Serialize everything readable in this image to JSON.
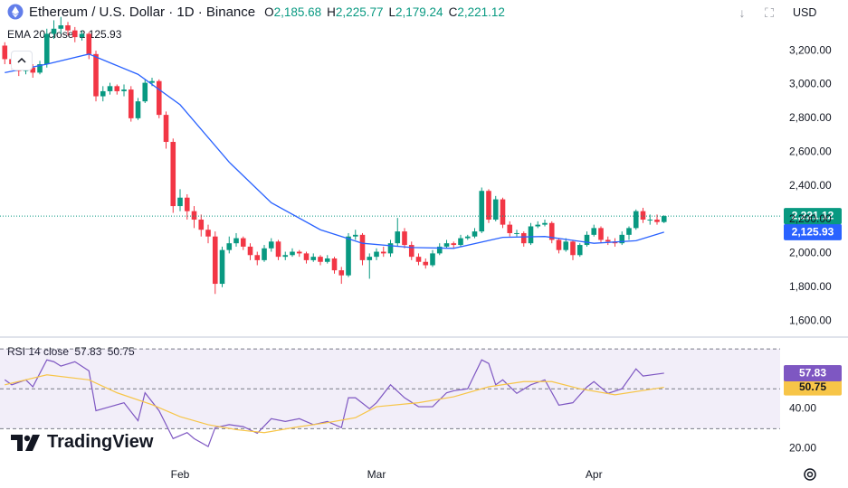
{
  "header": {
    "title": "Ethereum / U.S. Dollar · 1D · Binance",
    "ohlc": [
      {
        "key": "O",
        "value": "2,185.68"
      },
      {
        "key": "H",
        "value": "2,225.77"
      },
      {
        "key": "L",
        "value": "2,179.24"
      },
      {
        "key": "C",
        "value": "2,221.12"
      }
    ],
    "currency": "USD"
  },
  "logo": "TradingView",
  "chart_data": [
    {
      "type": "candlestick",
      "xlim": [
        -0.68,
        110.55
      ],
      "ylim": [
        1510,
        3500
      ],
      "yticks": [
        {
          "value": 1600,
          "label": "1,600.00"
        },
        {
          "value": 1800,
          "label": "1,800.00"
        },
        {
          "value": 2000,
          "label": "2,000.00"
        },
        {
          "value": 2200,
          "label": "2,200.00"
        },
        {
          "value": 2400,
          "label": "2,400.00"
        },
        {
          "value": 2600,
          "label": "2,600.00"
        },
        {
          "value": 2800,
          "label": "2,800.00"
        },
        {
          "value": 3000,
          "label": "3,000.00"
        },
        {
          "value": 3200,
          "label": "3,200.00"
        }
      ],
      "up_color": "#089981",
      "down_color": "#f23645",
      "candles": [
        [
          3230,
          3250,
          3120,
          3150
        ],
        [
          3150,
          3190,
          3090,
          3120
        ],
        [
          3120,
          3140,
          3050,
          3080
        ],
        [
          3080,
          3130,
          3060,
          3100
        ],
        [
          3100,
          3120,
          3040,
          3070
        ],
        [
          3070,
          3140,
          3060,
          3120
        ],
        [
          3120,
          3330,
          3100,
          3300
        ],
        [
          3300,
          3380,
          3270,
          3330
        ],
        [
          3330,
          3400,
          3300,
          3350
        ],
        [
          3350,
          3370,
          3290,
          3320
        ],
        [
          3320,
          3340,
          3250,
          3280
        ],
        [
          3280,
          3320,
          3260,
          3300
        ],
        [
          3300,
          3310,
          3150,
          3180
        ],
        [
          3180,
          3200,
          2900,
          2930
        ],
        [
          2930,
          2990,
          2900,
          2960
        ],
        [
          2960,
          3010,
          2940,
          2990
        ],
        [
          2990,
          3000,
          2940,
          2960
        ],
        [
          2960,
          3000,
          2930,
          2970
        ],
        [
          2970,
          2990,
          2780,
          2800
        ],
        [
          2800,
          2920,
          2790,
          2900
        ],
        [
          2900,
          3030,
          2890,
          3010
        ],
        [
          3010,
          3040,
          2990,
          3020
        ],
        [
          3020,
          3030,
          2800,
          2820
        ],
        [
          2820,
          2840,
          2620,
          2660
        ],
        [
          2660,
          2680,
          2240,
          2280
        ],
        [
          2280,
          2380,
          2250,
          2330
        ],
        [
          2330,
          2350,
          2200,
          2250
        ],
        [
          2250,
          2280,
          2150,
          2200
        ],
        [
          2200,
          2230,
          2100,
          2140
        ],
        [
          2140,
          2170,
          2060,
          2100
        ],
        [
          2100,
          2130,
          1760,
          1820
        ],
        [
          1820,
          2040,
          1800,
          2020
        ],
        [
          2020,
          2100,
          2000,
          2060
        ],
        [
          2060,
          2120,
          2040,
          2090
        ],
        [
          2090,
          2100,
          2020,
          2040
        ],
        [
          2040,
          2060,
          1960,
          1990
        ],
        [
          1990,
          2010,
          1930,
          1960
        ],
        [
          1960,
          2050,
          1950,
          2030
        ],
        [
          2030,
          2090,
          2010,
          2070
        ],
        [
          2070,
          2080,
          1960,
          1980
        ],
        [
          1980,
          2010,
          1960,
          1990
        ],
        [
          1990,
          2030,
          1980,
          2010
        ],
        [
          2010,
          2020,
          1980,
          2000
        ],
        [
          2000,
          2010,
          1940,
          1960
        ],
        [
          1960,
          2000,
          1950,
          1980
        ],
        [
          1980,
          1990,
          1930,
          1950
        ],
        [
          1950,
          1990,
          1940,
          1970
        ],
        [
          1970,
          1980,
          1880,
          1900
        ],
        [
          1900,
          1920,
          1820,
          1870
        ],
        [
          1870,
          2120,
          1860,
          2100
        ],
        [
          2100,
          2140,
          2080,
          2110
        ],
        [
          2110,
          2120,
          1930,
          1960
        ],
        [
          1960,
          2000,
          1850,
          1980
        ],
        [
          1980,
          2030,
          1960,
          2010
        ],
        [
          2010,
          2040,
          1980,
          2000
        ],
        [
          2000,
          2080,
          1980,
          2060
        ],
        [
          2060,
          2210,
          2040,
          2130
        ],
        [
          2130,
          2150,
          2030,
          2050
        ],
        [
          2050,
          2070,
          1960,
          1980
        ],
        [
          1980,
          2000,
          1930,
          1950
        ],
        [
          1950,
          1970,
          1910,
          1930
        ],
        [
          1930,
          2020,
          1920,
          2000
        ],
        [
          2000,
          2060,
          1990,
          2040
        ],
        [
          2040,
          2080,
          2030,
          2060
        ],
        [
          2060,
          2070,
          2030,
          2050
        ],
        [
          2050,
          2110,
          2040,
          2090
        ],
        [
          2090,
          2110,
          2080,
          2100
        ],
        [
          2100,
          2150,
          2090,
          2130
        ],
        [
          2130,
          2390,
          2120,
          2370
        ],
        [
          2370,
          2380,
          2180,
          2200
        ],
        [
          2200,
          2340,
          2190,
          2320
        ],
        [
          2320,
          2330,
          2150,
          2170
        ],
        [
          2170,
          2190,
          2100,
          2120
        ],
        [
          2120,
          2140,
          2100,
          2120
        ],
        [
          2120,
          2130,
          2040,
          2060
        ],
        [
          2060,
          2180,
          2050,
          2160
        ],
        [
          2160,
          2190,
          2150,
          2170
        ],
        [
          2170,
          2200,
          2160,
          2180
        ],
        [
          2180,
          2190,
          2060,
          2080
        ],
        [
          2080,
          2090,
          2000,
          2020
        ],
        [
          2020,
          2090,
          2010,
          2070
        ],
        [
          2070,
          2080,
          1960,
          1990
        ],
        [
          1990,
          2060,
          1980,
          2050
        ],
        [
          2050,
          2130,
          2040,
          2110
        ],
        [
          2110,
          2170,
          2100,
          2150
        ],
        [
          2150,
          2160,
          2060,
          2080
        ],
        [
          2080,
          2100,
          2050,
          2070
        ],
        [
          2070,
          2090,
          2040,
          2060
        ],
        [
          2060,
          2130,
          2050,
          2110
        ],
        [
          2110,
          2160,
          2080,
          2150
        ],
        [
          2150,
          2260,
          2140,
          2250
        ],
        [
          2250,
          2270,
          2180,
          2200
        ],
        [
          2200,
          2230,
          2170,
          2200
        ],
        [
          2200,
          2230,
          2170,
          2185.68
        ],
        [
          2185.68,
          2225.77,
          2179.24,
          2221.12
        ]
      ],
      "last_price_label": "2,221.12",
      "ema": {
        "name": "EMA 20 close",
        "value_label": "2,125.93",
        "color": "#2962ff",
        "x": [
          0,
          6,
          12,
          19,
          25,
          32,
          38,
          45,
          51,
          58,
          64,
          71,
          77,
          84,
          90,
          94
        ],
        "values": [
          3070,
          3120,
          3180,
          3060,
          2880,
          2540,
          2300,
          2140,
          2060,
          2035,
          2030,
          2095,
          2100,
          2060,
          2075,
          2125.93
        ]
      }
    },
    {
      "type": "line",
      "title": "RSI 14 close",
      "xlim": [
        -0.68,
        110.55
      ],
      "ylim": [
        12,
        75.5
      ],
      "yticks": [
        {
          "value": 20,
          "label": "20.00"
        },
        {
          "value": 40,
          "label": "40.00"
        }
      ],
      "xticks": [
        {
          "value": 25,
          "label": "Feb"
        },
        {
          "value": 53,
          "label": "Mar"
        },
        {
          "value": 84,
          "label": "Apr"
        }
      ],
      "levels": [
        70,
        50,
        30
      ],
      "series": [
        {
          "color": "#7e57c2",
          "value_label": "57.83",
          "x": [
            0,
            1,
            3,
            4,
            6,
            7,
            8,
            10,
            12,
            13,
            15,
            17,
            19,
            20,
            22,
            23,
            24,
            26,
            27,
            29,
            30,
            32,
            34,
            36,
            38,
            40,
            42,
            44,
            46,
            48,
            49,
            50,
            52,
            53,
            55,
            57,
            59,
            61,
            63,
            64,
            66,
            68,
            69,
            70,
            71,
            73,
            75,
            77,
            79,
            81,
            83,
            84,
            86,
            88,
            90,
            91,
            94
          ],
          "values": [
            54.5,
            52,
            54.5,
            51,
            64.5,
            63.6,
            61.4,
            63.6,
            59,
            39,
            41,
            43,
            34,
            48,
            39,
            32,
            25,
            28,
            25,
            21,
            30.5,
            32,
            31,
            27.7,
            35,
            33.6,
            35,
            32,
            33.6,
            30.5,
            45.5,
            45.5,
            40,
            43,
            52,
            45.5,
            41,
            41,
            48,
            49,
            50,
            64.5,
            62.7,
            52,
            54.5,
            47.7,
            52,
            54.5,
            41.8,
            43,
            50.9,
            53.6,
            47.7,
            50,
            60,
            56.4,
            57.83
          ]
        },
        {
          "color": "#f7c548",
          "value_label": "50.75",
          "x": [
            0,
            6,
            12,
            16,
            21,
            25,
            29,
            33,
            37,
            42,
            46,
            50,
            53,
            59,
            64,
            69,
            74,
            78,
            82,
            87,
            94
          ],
          "values": [
            52,
            57,
            54.5,
            48,
            42,
            36,
            32,
            29.5,
            28,
            31,
            33,
            35.5,
            41,
            43,
            46,
            51,
            53.6,
            53.6,
            50,
            47,
            50.75
          ]
        }
      ]
    }
  ]
}
